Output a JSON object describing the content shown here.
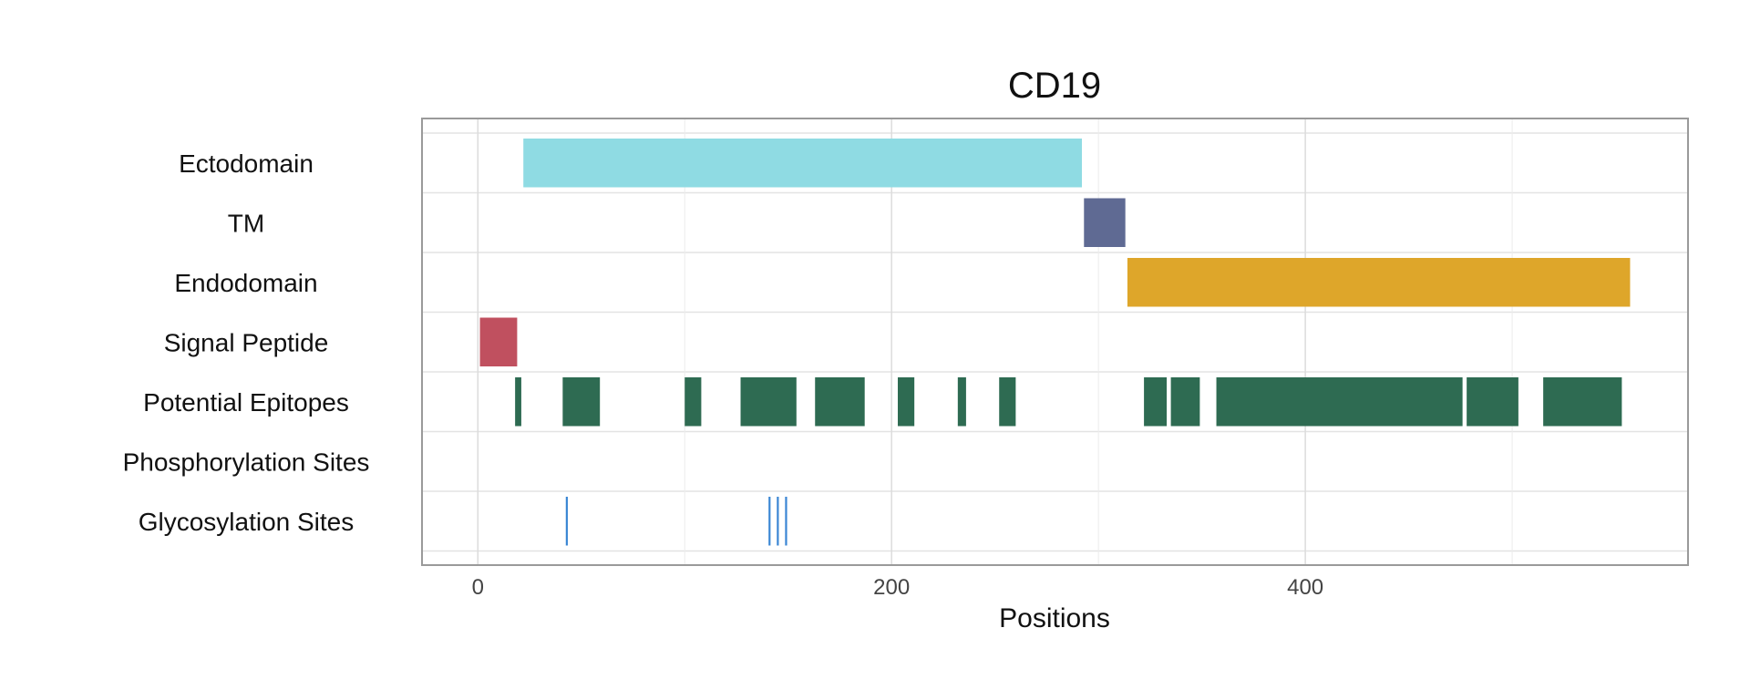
{
  "chart_data": {
    "type": "timeline",
    "title": "CD19",
    "xlabel": "Positions",
    "ylabel": "",
    "xlim": [
      -27,
      585
    ],
    "x_ticks": [
      0,
      200,
      400
    ],
    "grid": true,
    "legend": "none",
    "categories": [
      "Ectodomain",
      "TM",
      "Endodomain",
      "Signal Peptide",
      "Potential Epitopes",
      "Phosphorylation Sites",
      "Glycosylation Sites"
    ],
    "series": [
      {
        "name": "Ectodomain",
        "color": "#8fdbe3",
        "segments": [
          [
            22,
            292
          ]
        ]
      },
      {
        "name": "TM",
        "color": "#5f6a93",
        "segments": [
          [
            293,
            313
          ]
        ]
      },
      {
        "name": "Endodomain",
        "color": "#dea62a",
        "segments": [
          [
            314,
            557
          ]
        ]
      },
      {
        "name": "Signal Peptide",
        "color": "#c0505f",
        "segments": [
          [
            1,
            19
          ]
        ]
      },
      {
        "name": "Potential Epitopes",
        "color": "#2e6b52",
        "segments": [
          [
            18,
            21
          ],
          [
            41,
            59
          ],
          [
            100,
            108
          ],
          [
            127,
            154
          ],
          [
            163,
            187
          ],
          [
            203,
            211
          ],
          [
            232,
            236
          ],
          [
            252,
            260
          ],
          [
            322,
            333
          ],
          [
            335,
            349
          ],
          [
            357,
            476
          ],
          [
            478,
            503
          ],
          [
            515,
            553
          ]
        ]
      },
      {
        "name": "Phosphorylation Sites",
        "color": "#3a86d4",
        "segments": []
      },
      {
        "name": "Glycosylation Sites",
        "color": "#3a86d4",
        "sites": [
          43,
          141,
          145,
          149
        ]
      }
    ]
  }
}
